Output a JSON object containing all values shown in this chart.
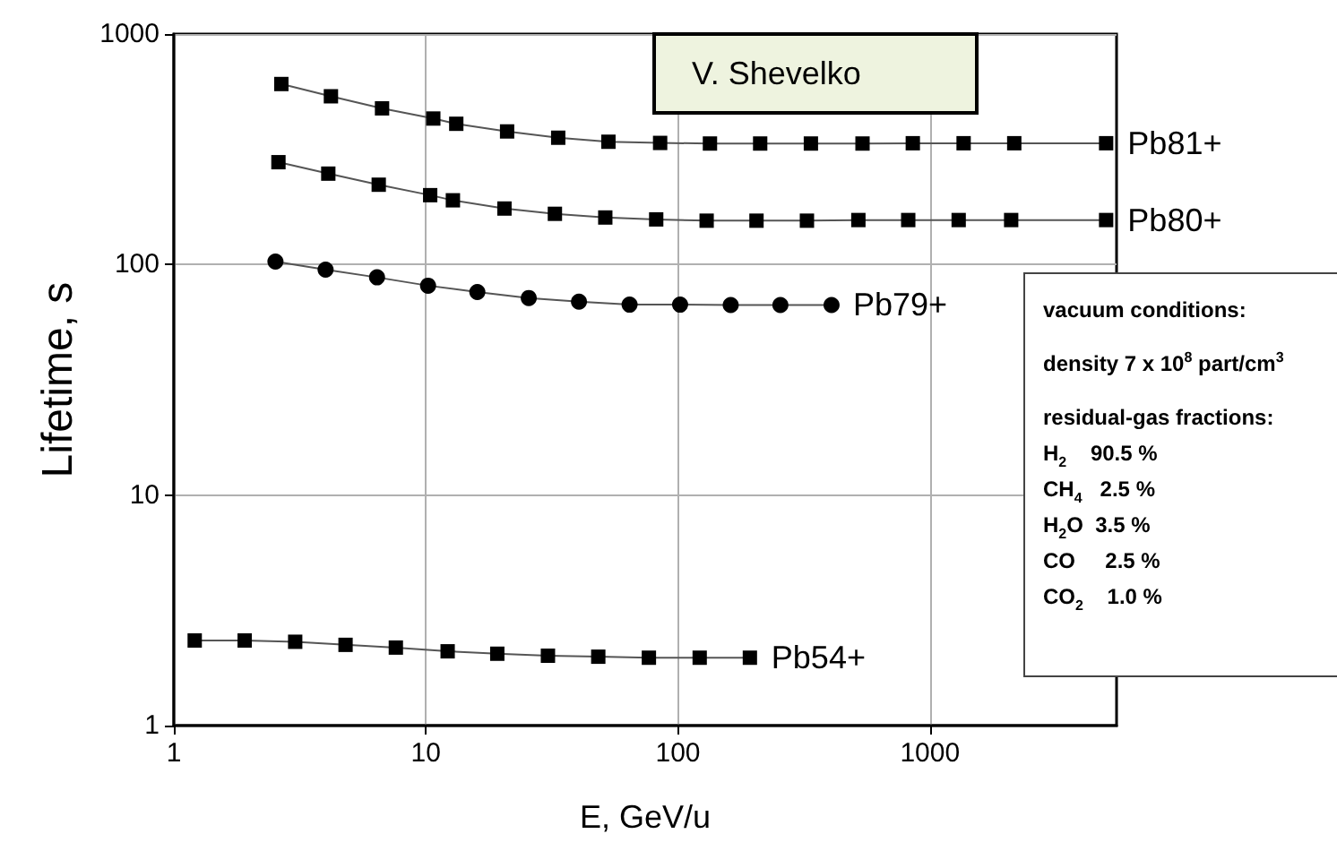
{
  "chart_data": {
    "type": "line",
    "xlabel": "E, GeV/u",
    "ylabel": "Lifetime, s",
    "log": "xy",
    "grid": true,
    "line_style": "solid",
    "xlim": [
      1,
      5500
    ],
    "xticks": [
      1,
      10,
      100,
      1000
    ],
    "ylim": [
      1,
      1000
    ],
    "yticks": [
      1,
      10,
      100,
      1000
    ],
    "series": [
      {
        "color": "#000000",
        "marker": "square",
        "x": [
          2.67,
          4.2,
          6.7,
          10.7,
          13.2,
          21,
          33.5,
          53,
          85,
          134,
          212,
          337,
          540,
          855,
          1360,
          2160,
          5000
        ],
        "values": [
          607,
          537,
          476,
          430,
          408,
          378,
          355,
          341,
          337,
          335,
          335,
          335,
          335,
          336,
          336,
          336,
          336
        ]
      },
      {
        "color": "#000000",
        "marker": "square",
        "x": [
          2.6,
          4.1,
          6.5,
          10.4,
          12.8,
          20.5,
          32.5,
          51.5,
          82,
          130,
          205,
          325,
          520,
          820,
          1300,
          2100,
          5000
        ],
        "values": [
          278,
          248,
          222,
          200,
          190,
          175,
          166,
          160,
          157,
          155,
          155,
          155,
          156,
          156,
          156,
          156,
          156
        ]
      },
      {
        "color": "#000000",
        "marker": "circle",
        "x": [
          2.53,
          4.0,
          6.4,
          10.2,
          16.0,
          25.6,
          40.5,
          64.3,
          102,
          162,
          255,
          407
        ],
        "values": [
          103,
          95,
          88,
          81,
          76,
          71.6,
          69,
          67,
          67,
          66.8,
          66.8,
          66.8
        ]
      },
      {
        "color": "#000000",
        "marker": "square",
        "x": [
          1.21,
          1.91,
          3.03,
          4.8,
          7.6,
          12.2,
          19.2,
          30.5,
          48.3,
          76.7,
          122,
          193
        ],
        "values": [
          2.34,
          2.34,
          2.31,
          2.24,
          2.18,
          2.1,
          2.05,
          2.01,
          1.99,
          1.97,
          1.97,
          1.97
        ]
      }
    ],
    "annotations": [
      {
        "text": "Pb81+",
        "x": 5000,
        "y": 336
      },
      {
        "text": "Pb80+",
        "x": 5000,
        "y": 156
      },
      {
        "text": "Pb79+",
        "x": 407,
        "y": 66.8
      },
      {
        "text": "Pb54+",
        "x": 193,
        "y": 1.97
      },
      "V. Shevelko",
      "vacuum conditions:",
      "density 7 x 10$^{8}$ part/cm$^{3}$",
      "residual-gas fractions:",
      "H$_{2}$    90.5 %",
      "CH$_{4}$   2.5 %",
      "H$_{2}$O  3.5 %",
      "CO     2.5 %",
      "CO$_{2}$    1.0 %"
    ]
  }
}
